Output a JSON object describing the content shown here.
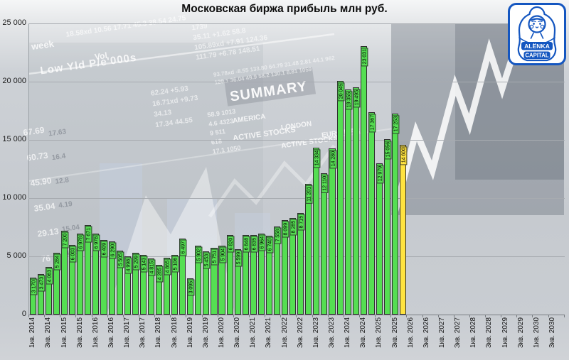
{
  "title": "Московская биржа прибыль млн руб.",
  "logo": {
    "line1": "ALËNKA",
    "line2": "CAPITAL"
  },
  "colors": {
    "bar_green": "#55DE52",
    "bar_forecast_yellow": "#FFE33F",
    "bar_border": "#2E2E2E",
    "grid": "#A7ABB0",
    "logo_blue": "#1456C0",
    "title_color": "#0E0E0E"
  },
  "chart_data": {
    "type": "bar",
    "title": "Московская биржа прибыль млн руб.",
    "xlabel": "",
    "ylabel": "",
    "ylim": [
      0,
      25000
    ],
    "grid": true,
    "legend": "none",
    "unit": "млн руб.",
    "ytick_labels": [
      "0",
      "5 000",
      "10 000",
      "15 000",
      "20 000",
      "25 000"
    ],
    "categories": [
      "1кв. 2014",
      "2кв. 2014",
      "3кв. 2014",
      "4кв. 2014",
      "1кв. 2015",
      "2кв. 2015",
      "3кв. 2015",
      "4кв. 2015",
      "1кв. 2016",
      "2кв. 2016",
      "3кв. 2016",
      "4кв. 2016",
      "1кв. 2017",
      "2кв. 2017",
      "3кв. 2017",
      "4кв. 2017",
      "1кв. 2018",
      "2кв. 2018",
      "3кв. 2018",
      "4кв. 2018",
      "1кв. 2019",
      "2кв. 2019",
      "3кв. 2019",
      "4кв. 2019",
      "1кв. 2020",
      "2кв. 2020",
      "3кв. 2020",
      "4кв. 2020",
      "1кв. 2021",
      "2кв. 2021",
      "3кв. 2021",
      "4кв. 2021",
      "1кв. 2022",
      "2кв. 2022",
      "3кв. 2022",
      "4кв. 2022",
      "1кв. 2023",
      "2кв. 2023",
      "3кв. 2023",
      "4кв. 2023",
      "1кв. 2024",
      "2кв. 2024",
      "3кв. 2024",
      "4кв. 2024",
      "1кв. 2025",
      "2кв. 2025",
      "3кв. 2025",
      "4кв. 2025"
    ],
    "values": [
      3170,
      3473,
      4063,
      5284,
      7200,
      6003,
      6978,
      7671,
      6978,
      6409,
      6290,
      5505,
      4998,
      5299,
      5143,
      4815,
      4285,
      4865,
      5106,
      6497,
      3095,
      5902,
      5453,
      5751,
      5904,
      6820,
      5599,
      6848,
      6835,
      6964,
      6740,
      7558,
      8099,
      8285,
      8715,
      11201,
      14334,
      12110,
      14280,
      20045,
      19355,
      19495,
      23031,
      17367,
      12979,
      15056,
      17253,
      14600
    ],
    "forecast_index": 47,
    "forecast_note": "последний столбец (4кв. 2025) выделен жёлтым — прогноз 14 600",
    "xaxis_labels": [
      "1кв. 2014",
      "3кв. 2014",
      "1кв. 2015",
      "3кв. 2015",
      "1кв. 2016",
      "3кв. 2016",
      "1кв. 2017",
      "3кв. 2017",
      "1кв. 2018",
      "3кв. 2018",
      "1кв. 2019",
      "3кв. 2019",
      "1кв. 2020",
      "3кв. 2020",
      "1кв. 2021",
      "3кв. 2021",
      "1кв. 2022",
      "3кв. 2022",
      "1кв. 2023",
      "3кв. 2023",
      "1кв. 2024",
      "3кв. 2024",
      "1кв. 2025",
      "3кв. 2025",
      "1кв. 2026",
      "3кв. 2026",
      "1кв. 2027",
      "3кв. 2027",
      "1кв. 2028",
      "3кв. 2028",
      "1кв. 2029",
      "3кв. 2029",
      "1кв. 2030",
      "3кв. 2030"
    ]
  },
  "background": {
    "week": "week",
    "columns_header": "Low      Yld    P/e'000s",
    "vol": "Vol",
    "summary": "SUMMARY",
    "america": "AMERICA",
    "active_stocks": "ACTIVE STOCKS",
    "london": "LONDON",
    "active_stocks2": "ACTIVE STOCKS",
    "euro": "EURO MAR",
    "col_numbers_1": "67.69\n60.73\n45.90\n35.04\n29.13\n76",
    "col_numbers_2": "17.63\n16.4\n12.8\n4.19\n15.04\n41.19",
    "top_numbers_1": "18.58xd   10.56   17.71   45.3   38.54   24.75",
    "top_numbers_2": "1739\n35.11   +1.62   58.8\n105.89xd   +7.91   124.36\n111.79   +6.78   148.51",
    "mid_numbers_1": "62.24   +5.93\n16.71xd   +9.73\n34.13\n17.34   44.55",
    "mid_numbers_2": "58.9   1013\n4.6   4323\n9   511\n618\n17.1   1050",
    "fine_numbers": "93.78xd  -8.55  133.80  64.79  31.48  2.81  44.1  962\n120.1  36.04  49.9  58.2  130.1  8.81  1059"
  }
}
